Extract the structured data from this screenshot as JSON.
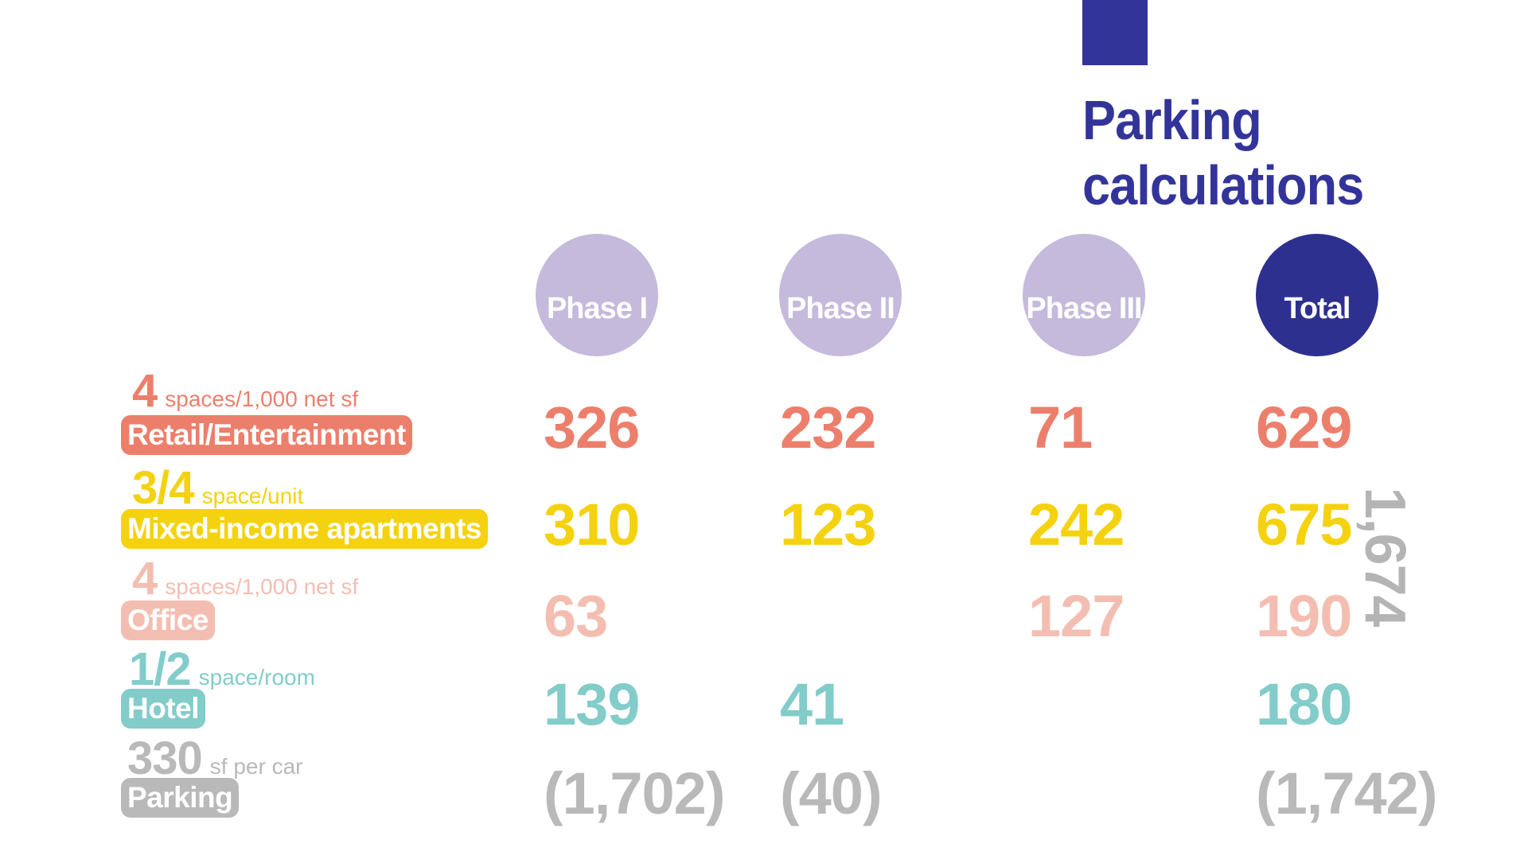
{
  "title": {
    "line1": "Parking",
    "line2": "calculations"
  },
  "colors": {
    "accent": "#33349a",
    "phase": "#c5b9dc",
    "total": "#2e3090",
    "retail": "#ec7f6b",
    "apartments": "#f5d210",
    "office": "#f3beb1",
    "hotel": "#82ccca",
    "parking": "#b9b9b9"
  },
  "columns": [
    "Phase I",
    "Phase II",
    "Phase III",
    "Total"
  ],
  "rows": [
    {
      "ratio": "4",
      "unit": "spaces/1,000 net sf",
      "category": "Retail/Entertainment",
      "values": [
        "326",
        "232",
        "71",
        "629"
      ]
    },
    {
      "ratio": "3/4",
      "unit": "space/unit",
      "category": "Mixed-income apartments",
      "values": [
        "310",
        "123",
        "242",
        "675"
      ]
    },
    {
      "ratio": "4",
      "unit": "spaces/1,000 net sf",
      "category": "Office",
      "values": [
        "63",
        "",
        "127",
        "190"
      ]
    },
    {
      "ratio": "1/2",
      "unit": "space/room",
      "category": "Hotel",
      "values": [
        "139",
        "41",
        "",
        "180"
      ]
    },
    {
      "ratio": "330",
      "unit": "sf per car",
      "category": "Parking",
      "values": [
        "(1,702)",
        "(40)",
        "",
        "(1,742)"
      ]
    }
  ],
  "grand_total": "1,674"
}
